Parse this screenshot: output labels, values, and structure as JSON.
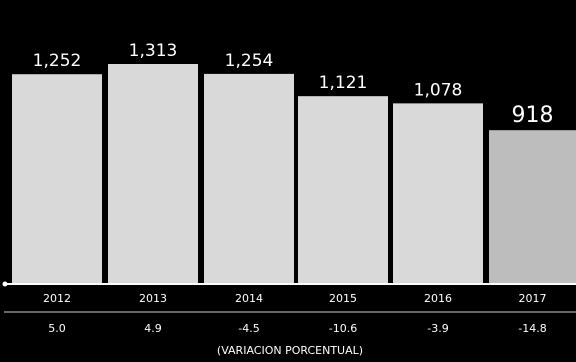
{
  "chart_data": {
    "type": "bar",
    "categories": [
      "2012",
      "2013",
      "2014",
      "2015",
      "2016",
      "2017"
    ],
    "values": [
      1252,
      1313,
      1254,
      1121,
      1078,
      918
    ],
    "value_labels": [
      "1,252",
      "1,313",
      "1,254",
      "1,121",
      "1,078",
      "918"
    ],
    "pct_change": [
      "5.0",
      "4.9",
      "-4.5",
      "-10.6",
      "-3.9",
      "-14.8"
    ],
    "pct_caption": "(VARIACION PORCENTUAL)",
    "ylim": [
      0,
      1313
    ],
    "grid": false,
    "title": "",
    "xlabel": "",
    "ylabel": ""
  },
  "colors": {
    "background": "#000000",
    "bar": "#d9d9d9",
    "bar_highlight": "#bdbdbd",
    "text": "#ffffff",
    "axis": "#ffffff"
  }
}
